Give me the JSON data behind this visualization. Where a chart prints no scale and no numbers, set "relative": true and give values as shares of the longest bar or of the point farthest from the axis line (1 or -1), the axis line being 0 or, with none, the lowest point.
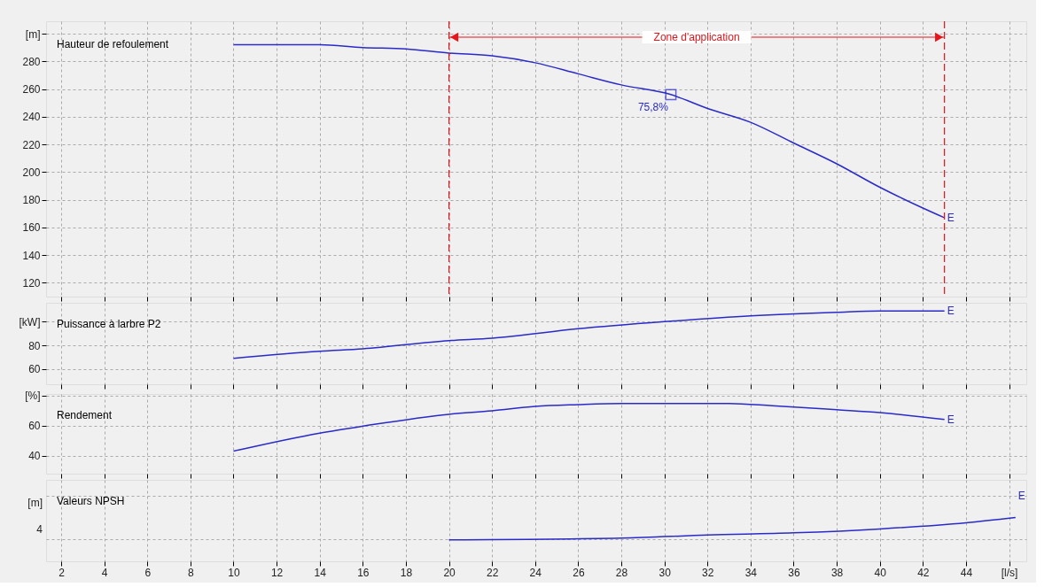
{
  "chart_data": [
    {
      "type": "line",
      "title": "Hauteur de refoulement",
      "xlim": [
        1.3,
        46.8
      ],
      "xticks": [
        2,
        4,
        6,
        8,
        10,
        12,
        14,
        16,
        18,
        20,
        22,
        24,
        26,
        28,
        30,
        32,
        34,
        36,
        38,
        40,
        42,
        44,
        46
      ],
      "ylim": [
        110,
        309
      ],
      "yticks": [
        120,
        140,
        160,
        180,
        200,
        220,
        240,
        260,
        280,
        {
          "value": 300,
          "label": "[m]"
        }
      ],
      "grid": true,
      "tick_labels": "y",
      "series": [
        {
          "color": "#2a2ac8",
          "x": [
            10,
            14,
            16,
            18,
            20,
            22,
            24,
            26,
            28,
            30.3,
            32,
            34,
            36,
            38,
            40,
            42,
            43
          ],
          "values": [
            292,
            292,
            290,
            289,
            286,
            284,
            279,
            271,
            263,
            256,
            246,
            236,
            221,
            206,
            189,
            174,
            167
          ]
        },
        {
          "type": "scatter",
          "marker": "square",
          "color": "#2a2ac8",
          "x": [
            30.3
          ],
          "values": [
            256
          ]
        }
      ],
      "ref_lines": [
        {
          "axis": "x",
          "value": 20,
          "color": "#e8141b",
          "line_style": "dashed"
        },
        {
          "axis": "x",
          "value": 43,
          "color": "#e8141b",
          "line_style": "dashed"
        }
      ],
      "annotations": [
        "Zone d'application",
        {
          "text": "75,8%",
          "x": 30.3,
          "y": 256
        },
        {
          "text": "E",
          "x": 43,
          "y": 167
        }
      ]
    },
    {
      "type": "line",
      "title": "Puissance à larbre P2",
      "xlim": [
        1.3,
        46.8
      ],
      "xticks": [
        2,
        4,
        6,
        8,
        10,
        12,
        14,
        16,
        18,
        20,
        22,
        24,
        26,
        28,
        30,
        32,
        34,
        36,
        38,
        40,
        42,
        44,
        46
      ],
      "ylim": [
        47,
        116
      ],
      "yticks": [
        60,
        80,
        {
          "value": 100,
          "label": "[kW]"
        }
      ],
      "grid": true,
      "tick_labels": "y",
      "series": [
        {
          "color": "#2a2ac8",
          "x": [
            10,
            14,
            16,
            20,
            22,
            26,
            30,
            34,
            38,
            40,
            43
          ],
          "values": [
            69,
            75,
            77,
            84,
            86,
            94,
            100,
            105,
            108,
            109,
            109
          ]
        }
      ],
      "annotations": [
        {
          "text": "E",
          "x": 43,
          "y": 109
        }
      ]
    },
    {
      "type": "line",
      "title": "Rendement",
      "xlim": [
        1.3,
        46.8
      ],
      "xticks": [
        2,
        4,
        6,
        8,
        10,
        12,
        14,
        16,
        18,
        20,
        22,
        24,
        26,
        28,
        30,
        32,
        34,
        36,
        38,
        40,
        42,
        44,
        46
      ],
      "ylim": [
        28,
        81
      ],
      "yticks": [
        40,
        60,
        {
          "value": 80,
          "label": "[%]"
        }
      ],
      "grid": true,
      "tick_labels": "y",
      "series": [
        {
          "color": "#2a2ac8",
          "x": [
            10,
            14,
            16,
            20,
            22,
            24,
            26,
            28,
            33,
            35,
            38,
            40,
            43
          ],
          "values": [
            43,
            55,
            59.6,
            67.5,
            69.8,
            72.8,
            74,
            74.7,
            74.7,
            73.2,
            70.5,
            68.6,
            64
          ]
        }
      ],
      "annotations": [
        {
          "text": "E",
          "x": 43,
          "y": 64
        }
      ]
    },
    {
      "type": "line",
      "title": "Valeurs NPSH",
      "xlim": [
        1.3,
        46.8
      ],
      "xticks": [
        2,
        4,
        6,
        8,
        10,
        12,
        14,
        16,
        18,
        20,
        22,
        24,
        26,
        28,
        30,
        32,
        34,
        36,
        38,
        40,
        42,
        44,
        {
          "value": 46,
          "label": "[l/s]"
        }
      ],
      "relative": true,
      "grid": true,
      "series": [
        {
          "color": "#2a2ac8",
          "x": [
            20,
            28,
            32,
            36,
            40,
            44,
            46.3
          ],
          "values": [
            0.49,
            0.53,
            0.6,
            0.65,
            0.74,
            0.88,
            1.0
          ]
        }
      ],
      "annotations": [
        "[m]",
        "4",
        {
          "text": "E",
          "x": 46.3,
          "y": 1.0
        }
      ]
    }
  ]
}
